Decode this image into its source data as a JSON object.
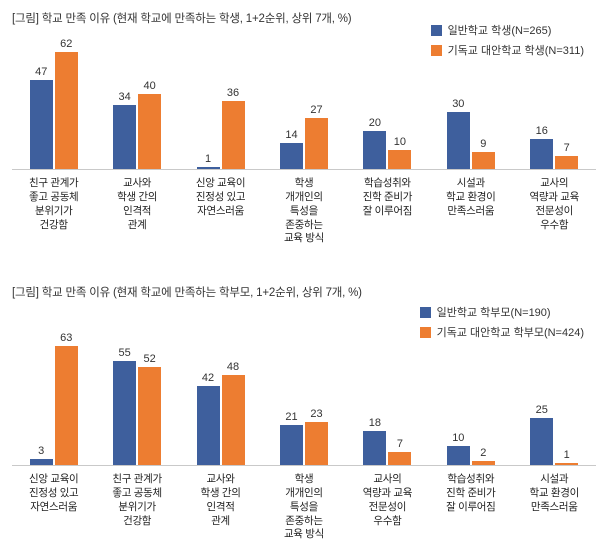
{
  "colors": {
    "series": [
      "#3e5f9d",
      "#ed7d31"
    ],
    "baseline": "#c9c9c9",
    "text": "#333333"
  },
  "chart_data": [
    {
      "type": "bar",
      "title": "[그림] 학교 만족 이유 (현재 학교에 만족하는 학생, 1+2순위, 상위 7개, %)",
      "legend_position": "top-right",
      "grid": false,
      "ylim": [
        0,
        70
      ],
      "categories": [
        "친구 관계가\n좋고 공동체\n분위기가\n건강함",
        "교사와\n학생 간의\n인격적\n관계",
        "신앙 교육이\n진정성 있고\n자연스러움",
        "학생\n개개인의\n특성을\n존중하는\n교육 방식",
        "학습성취와\n진학 준비가\n잘 이루어짐",
        "시설과\n학교 환경이\n만족스러움",
        "교사의\n역량과 교육\n전문성이\n우수함"
      ],
      "series": [
        {
          "name": "일반학교 학생(N=265)",
          "values": [
            47,
            34,
            1,
            14,
            20,
            30,
            16
          ]
        },
        {
          "name": "기독교 대안학교 학생(N=311)",
          "values": [
            62,
            40,
            36,
            27,
            10,
            9,
            7
          ]
        }
      ]
    },
    {
      "type": "bar",
      "title": "[그림] 학교 만족 이유 (현재 학교에 만족하는 학부모, 1+2순위, 상위 7개, %)",
      "legend_position": "top-right",
      "grid": false,
      "ylim": [
        0,
        70
      ],
      "categories": [
        "신앙 교육이\n진정성 있고\n자연스러움",
        "친구 관계가\n좋고 공동체\n분위기가\n건강함",
        "교사와\n학생 간의\n인격적\n관계",
        "학생\n개개인의\n특성을\n존중하는\n교육 방식",
        "교사의\n역량과 교육\n전문성이\n우수함",
        "학습성취와\n진학 준비가\n잘 이루어짐",
        "시설과\n학교 환경이\n만족스러움"
      ],
      "series": [
        {
          "name": "일반학교 학부모(N=190)",
          "values": [
            3,
            55,
            42,
            21,
            18,
            10,
            25
          ]
        },
        {
          "name": "기독교 대안학교 학부모(N=424)",
          "values": [
            63,
            52,
            48,
            23,
            7,
            2,
            1
          ]
        }
      ]
    }
  ]
}
